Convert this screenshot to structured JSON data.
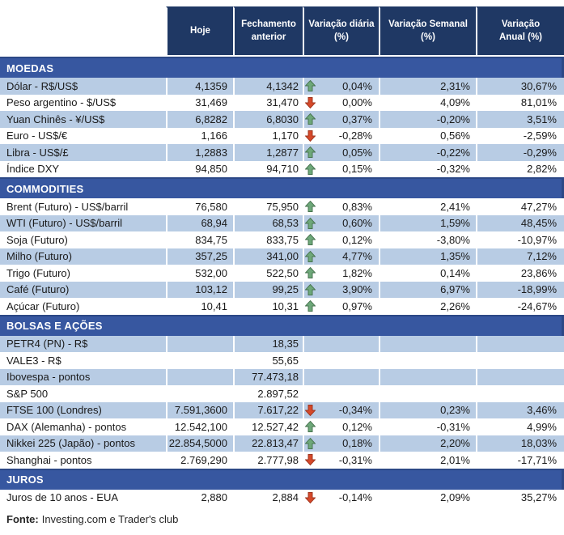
{
  "header": {
    "columns": [
      {
        "line1": "Hoje",
        "line2": ""
      },
      {
        "line1": "Fechamento",
        "line2": "anterior"
      },
      {
        "line1": "Variação diária",
        "line2": "(%)"
      },
      {
        "line1": "Variação Semanal",
        "line2": "(%)"
      },
      {
        "line1": "Variação",
        "line2": "Anual (%)"
      }
    ]
  },
  "sections": [
    {
      "title": "MOEDAS",
      "rows": [
        {
          "name": "Dólar - R$/US$",
          "hoje": "4,1359",
          "fechamento": "4,1342",
          "arrow": "up",
          "diaria": "0,04%",
          "semanal": "2,31%",
          "anual": "30,67%"
        },
        {
          "name": "Peso argentino - $/US$",
          "hoje": "31,469",
          "fechamento": "31,470",
          "arrow": "down",
          "diaria": "0,00%",
          "semanal": "4,09%",
          "anual": "81,01%"
        },
        {
          "name": "Yuan Chinês - ¥/US$",
          "hoje": "6,8282",
          "fechamento": "6,8030",
          "arrow": "up",
          "diaria": "0,37%",
          "semanal": "-0,20%",
          "anual": "3,51%"
        },
        {
          "name": "Euro - US$/€",
          "hoje": "1,166",
          "fechamento": "1,170",
          "arrow": "down",
          "diaria": "-0,28%",
          "semanal": "0,56%",
          "anual": "-2,59%"
        },
        {
          "name": "Libra - US$/£",
          "hoje": "1,2883",
          "fechamento": "1,2877",
          "arrow": "up",
          "diaria": "0,05%",
          "semanal": "-0,22%",
          "anual": "-0,29%"
        },
        {
          "name": "Índice DXY",
          "hoje": "94,850",
          "fechamento": "94,710",
          "arrow": "up",
          "diaria": "0,15%",
          "semanal": "-0,32%",
          "anual": "2,82%"
        }
      ]
    },
    {
      "title": "COMMODITIES",
      "rows": [
        {
          "name": "Brent (Futuro) - US$/barril",
          "hoje": "76,580",
          "fechamento": "75,950",
          "arrow": "up",
          "diaria": "0,83%",
          "semanal": "2,41%",
          "anual": "47,27%"
        },
        {
          "name": "WTI (Futuro) - US$/barril",
          "hoje": "68,94",
          "fechamento": "68,53",
          "arrow": "up",
          "diaria": "0,60%",
          "semanal": "1,59%",
          "anual": "48,45%"
        },
        {
          "name": "Soja (Futuro)",
          "hoje": "834,75",
          "fechamento": "833,75",
          "arrow": "up",
          "diaria": "0,12%",
          "semanal": "-3,80%",
          "anual": "-10,97%"
        },
        {
          "name": "Milho (Futuro)",
          "hoje": "357,25",
          "fechamento": "341,00",
          "arrow": "up",
          "diaria": "4,77%",
          "semanal": "1,35%",
          "anual": "7,12%"
        },
        {
          "name": "Trigo (Futuro)",
          "hoje": "532,00",
          "fechamento": "522,50",
          "arrow": "up",
          "diaria": "1,82%",
          "semanal": "0,14%",
          "anual": "23,86%"
        },
        {
          "name": "Café (Futuro)",
          "hoje": "103,12",
          "fechamento": "99,25",
          "arrow": "up",
          "diaria": "3,90%",
          "semanal": "6,97%",
          "anual": "-18,99%"
        },
        {
          "name": "Açúcar (Futuro)",
          "hoje": "10,41",
          "fechamento": "10,31",
          "arrow": "up",
          "diaria": "0,97%",
          "semanal": "2,26%",
          "anual": "-24,67%"
        }
      ]
    },
    {
      "title": "BOLSAS E AÇÕES",
      "rows": [
        {
          "name": "PETR4 (PN) - R$",
          "hoje": "",
          "fechamento": "18,35",
          "arrow": null,
          "diaria": "",
          "semanal": "",
          "anual": ""
        },
        {
          "name": "VALE3 - R$",
          "hoje": "",
          "fechamento": "55,65",
          "arrow": null,
          "diaria": "",
          "semanal": "",
          "anual": ""
        },
        {
          "name": "Ibovespa - pontos",
          "hoje": "",
          "fechamento": "77.473,18",
          "arrow": null,
          "diaria": "",
          "semanal": "",
          "anual": ""
        },
        {
          "name": "S&P 500",
          "hoje": "",
          "fechamento": "2.897,52",
          "arrow": null,
          "diaria": "",
          "semanal": "",
          "anual": ""
        },
        {
          "name": "FTSE 100 (Londres)",
          "hoje": "7.591,3600",
          "fechamento": "7.617,22",
          "arrow": "down",
          "diaria": "-0,34%",
          "semanal": "0,23%",
          "anual": "3,46%"
        },
        {
          "name": "DAX (Alemanha) - pontos",
          "hoje": "12.542,100",
          "fechamento": "12.527,42",
          "arrow": "up",
          "diaria": "0,12%",
          "semanal": "-0,31%",
          "anual": "4,99%"
        },
        {
          "name": "Nikkei 225 (Japão) - pontos",
          "hoje": "22.854,5000",
          "fechamento": "22.813,47",
          "arrow": "up",
          "diaria": "0,18%",
          "semanal": "2,20%",
          "anual": "18,03%"
        },
        {
          "name": "Shanghai - pontos",
          "hoje": "2.769,290",
          "fechamento": "2.777,98",
          "arrow": "down",
          "diaria": "-0,31%",
          "semanal": "2,01%",
          "anual": "-17,71%"
        }
      ]
    },
    {
      "title": "JUROS",
      "rows": [
        {
          "name": "Juros de 10 anos - EUA",
          "hoje": "2,880",
          "fechamento": "2,884",
          "arrow": "down",
          "diaria": "-0,14%",
          "semanal": "2,09%",
          "anual": "35,27%"
        }
      ]
    }
  ],
  "footer": {
    "label": "Fonte:",
    "text": "Investing.com e Trader's club"
  },
  "icons": {
    "up": "up-arrow",
    "down": "down-arrow"
  },
  "colors": {
    "header_bg": "#1F3864",
    "band_bg": "#3757A0",
    "band_edge": "#2C4886",
    "stripe": "#B8CCE4",
    "text": "#1A1A1A",
    "up_arrow_fill": "#6EA87A",
    "up_arrow_stroke": "#47734F",
    "down_arrow_fill": "#D6492A",
    "down_arrow_stroke": "#9E351F"
  }
}
